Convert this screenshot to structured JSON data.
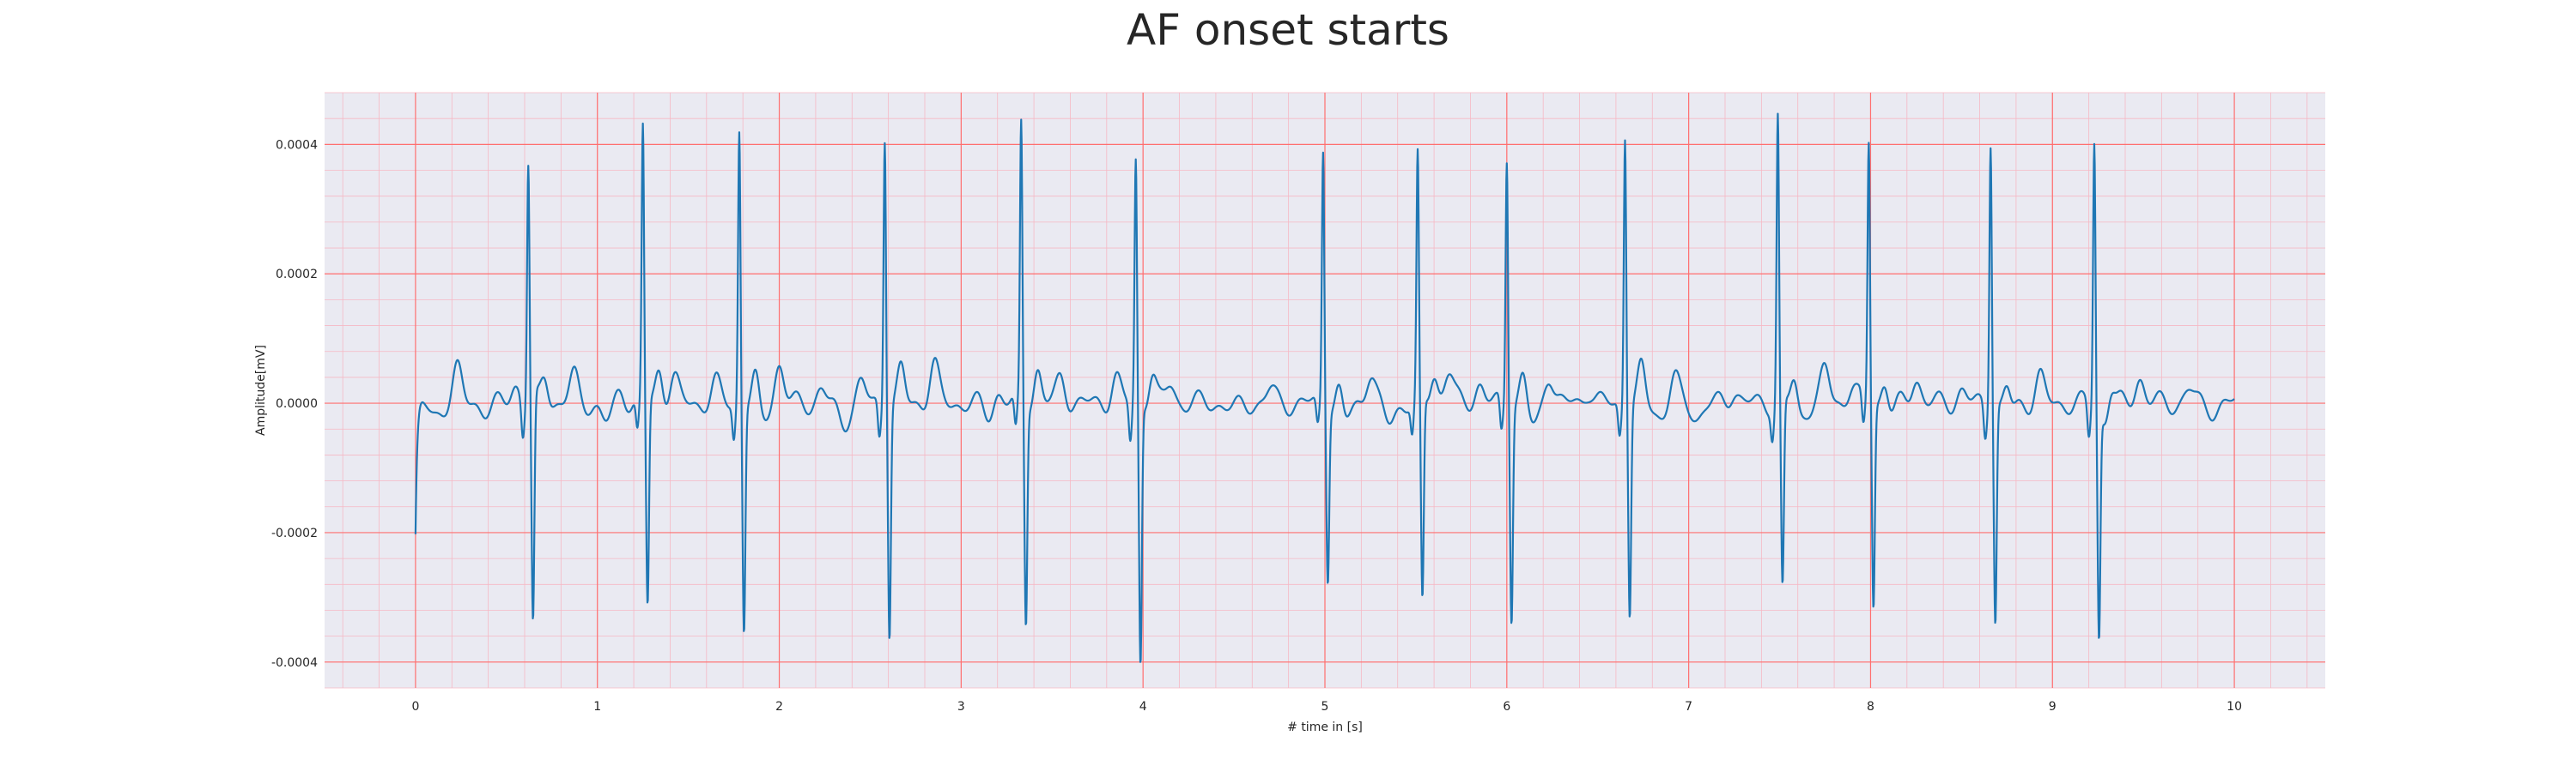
{
  "chart_data": {
    "type": "line",
    "title": "AF onset starts",
    "xlabel": "# time in [s]",
    "ylabel": "Amplitude[mV]",
    "xlim": [
      -0.5,
      10.5
    ],
    "ylim": [
      -0.00044,
      0.00048
    ],
    "x_ticks": [
      0,
      1,
      2,
      3,
      4,
      5,
      6,
      7,
      8,
      9,
      10
    ],
    "x_tick_labels": [
      "0",
      "1",
      "2",
      "3",
      "4",
      "5",
      "6",
      "7",
      "8",
      "9",
      "10"
    ],
    "y_ticks": [
      -0.0004,
      -0.0002,
      0.0,
      0.0002,
      0.0004
    ],
    "y_tick_labels": [
      "-0.0004",
      "-0.0002",
      "0.0000",
      "0.0002",
      "0.0004"
    ],
    "grid": true,
    "grid_major_color": "#ff6f6f",
    "grid_minor_color": "#f6b8c4",
    "plot_background": "#eaeaf2",
    "series": [
      {
        "color": "#1f77b4",
        "x_start": 0,
        "x_end": 10,
        "start_value": -0.00021,
        "baseline_bumps": [
          {
            "t": 0.23,
            "v": 5e-05
          },
          {
            "t": 0.55,
            "v": 3e-05
          },
          {
            "t": 0.87,
            "v": 4e-05
          },
          {
            "t": 1.13,
            "v": 2e-05
          },
          {
            "t": 1.42,
            "v": 4e-05
          },
          {
            "t": 1.65,
            "v": 3e-05
          },
          {
            "t": 2.0,
            "v": 6e-05
          },
          {
            "t": 2.23,
            "v": 2e-05
          },
          {
            "t": 2.45,
            "v": 3e-05
          },
          {
            "t": 2.85,
            "v": 6e-05
          },
          {
            "t": 3.2,
            "v": 2e-05
          },
          {
            "t": 3.55,
            "v": 4e-05
          },
          {
            "t": 3.85,
            "v": 4e-05
          },
          {
            "t": 4.15,
            "v": 3e-05
          },
          {
            "t": 4.7,
            "v": 2e-05
          },
          {
            "t": 5.25,
            "v": 5e-05
          },
          {
            "t": 5.68,
            "v": 5e-05
          },
          {
            "t": 5.85,
            "v": 3e-05
          },
          {
            "t": 6.23,
            "v": 5e-05
          },
          {
            "t": 6.45,
            "v": 2e-05
          },
          {
            "t": 6.92,
            "v": 4e-05
          },
          {
            "t": 7.25,
            "v": 2e-05
          },
          {
            "t": 7.75,
            "v": 5e-05
          },
          {
            "t": 7.9,
            "v": 3e-05
          },
          {
            "t": 8.25,
            "v": 4e-05
          },
          {
            "t": 8.5,
            "v": 2e-05
          },
          {
            "t": 8.93,
            "v": 4e-05
          },
          {
            "t": 9.48,
            "v": 4e-05
          },
          {
            "t": 9.75,
            "v": 2e-05
          }
        ],
        "baseline_dips": [
          {
            "t": 0.1,
            "v": -2e-05
          },
          {
            "t": 0.4,
            "v": -1e-05
          },
          {
            "t": 1.05,
            "v": -3e-05
          },
          {
            "t": 1.9,
            "v": -3e-05
          },
          {
            "t": 2.35,
            "v": -3e-05
          },
          {
            "t": 3.15,
            "v": -2e-05
          },
          {
            "t": 4.5,
            "v": -1e-05
          },
          {
            "t": 5.1,
            "v": -4e-05
          },
          {
            "t": 5.35,
            "v": -3e-05
          },
          {
            "t": 6.15,
            "v": -4e-05
          },
          {
            "t": 6.85,
            "v": -2e-05
          },
          {
            "t": 7.05,
            "v": -2e-05
          },
          {
            "t": 7.6,
            "v": -3e-05
          },
          {
            "t": 8.1,
            "v": -2e-05
          },
          {
            "t": 8.75,
            "v": -3e-05
          },
          {
            "t": 9.3,
            "v": -4e-05
          },
          {
            "t": 9.9,
            "v": -1e-05
          }
        ],
        "qrs_complexes": [
          {
            "t": 0.62,
            "r": 0.00037,
            "s": -0.00035
          },
          {
            "t": 1.25,
            "r": 0.000425,
            "s": -0.000315
          },
          {
            "t": 1.78,
            "r": 0.000425,
            "s": -0.000345
          },
          {
            "t": 2.58,
            "r": 0.00042,
            "s": -0.00035
          },
          {
            "t": 3.33,
            "r": 0.00043,
            "s": -0.000335
          },
          {
            "t": 3.96,
            "r": 0.000375,
            "s": -0.0004
          },
          {
            "t": 4.99,
            "r": 0.000395,
            "s": -0.00026
          },
          {
            "t": 5.51,
            "r": 0.000375,
            "s": -0.000315
          },
          {
            "t": 6.0,
            "r": 0.000385,
            "s": -0.000325
          },
          {
            "t": 6.65,
            "r": 0.00042,
            "s": -0.00032
          },
          {
            "t": 7.49,
            "r": 0.000445,
            "s": -0.00029
          },
          {
            "t": 7.99,
            "r": 0.000405,
            "s": -0.00031
          },
          {
            "t": 8.66,
            "r": 0.000415,
            "s": -0.00033
          },
          {
            "t": 9.23,
            "r": 0.00041,
            "s": -0.00035
          }
        ]
      }
    ]
  }
}
